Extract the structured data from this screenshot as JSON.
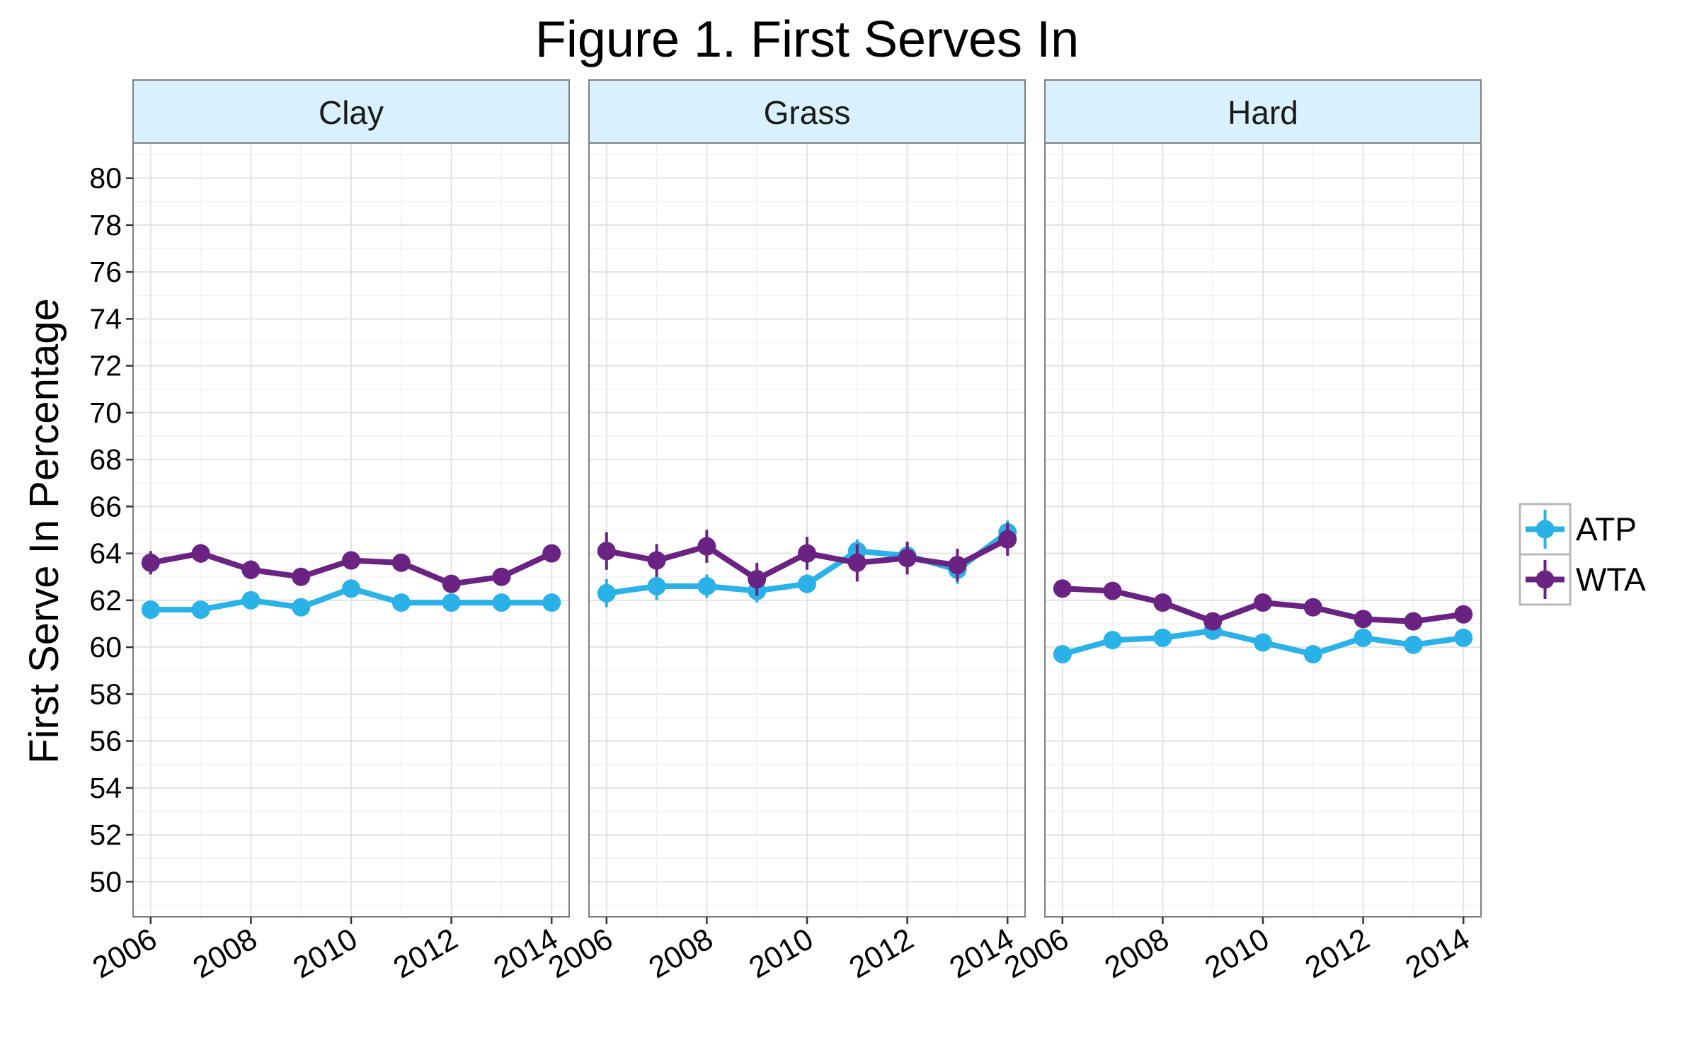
{
  "chart_data": {
    "type": "line",
    "title": "Figure 1. First Serves In",
    "xlabel": "",
    "ylabel": "First Serve In Percentage",
    "ylim": [
      48.5,
      81.5
    ],
    "y_ticks": [
      50,
      52,
      54,
      56,
      58,
      60,
      62,
      64,
      66,
      68,
      70,
      72,
      74,
      76,
      78,
      80
    ],
    "xlim": [
      2005.65,
      2014.35
    ],
    "x_ticks": [
      2006,
      2008,
      2010,
      2012,
      2014
    ],
    "x": [
      2006,
      2007,
      2008,
      2009,
      2010,
      2011,
      2012,
      2013,
      2014
    ],
    "grid": true,
    "legend_position": "right",
    "facets": [
      {
        "label": "Clay",
        "series": [
          {
            "name": "ATP",
            "color": "#29b1e8",
            "values": [
              61.6,
              61.6,
              62.0,
              61.7,
              62.5,
              61.9,
              61.9,
              61.9,
              61.9
            ],
            "errors": [
              0.2,
              0.2,
              0.2,
              0.2,
              0.2,
              0.2,
              0.2,
              0.2,
              0.2
            ]
          },
          {
            "name": "WTA",
            "color": "#6a2283",
            "values": [
              63.6,
              64.0,
              63.3,
              63.0,
              63.7,
              63.6,
              62.7,
              63.0,
              64.0
            ],
            "errors": [
              0.5,
              0.4,
              0.4,
              0.3,
              0.3,
              0.3,
              0.3,
              0.3,
              0.3
            ]
          }
        ]
      },
      {
        "label": "Grass",
        "series": [
          {
            "name": "ATP",
            "color": "#29b1e8",
            "values": [
              62.3,
              62.6,
              62.6,
              62.4,
              62.7,
              64.1,
              63.9,
              63.3,
              64.9
            ],
            "errors": [
              0.6,
              0.6,
              0.5,
              0.5,
              0.4,
              0.5,
              0.5,
              0.6,
              0.5
            ]
          },
          {
            "name": "WTA",
            "color": "#6a2283",
            "values": [
              64.1,
              63.7,
              64.3,
              62.9,
              64.0,
              63.6,
              63.8,
              63.5,
              64.6
            ],
            "errors": [
              0.8,
              0.7,
              0.7,
              0.7,
              0.7,
              0.8,
              0.7,
              0.7,
              0.7
            ]
          }
        ]
      },
      {
        "label": "Hard",
        "series": [
          {
            "name": "ATP",
            "color": "#29b1e8",
            "values": [
              59.7,
              60.3,
              60.4,
              60.7,
              60.2,
              59.7,
              60.4,
              60.1,
              60.4
            ],
            "errors": [
              0.2,
              0.2,
              0.2,
              0.2,
              0.2,
              0.2,
              0.2,
              0.2,
              0.2
            ]
          },
          {
            "name": "WTA",
            "color": "#6a2283",
            "values": [
              62.5,
              62.4,
              61.9,
              61.1,
              61.9,
              61.7,
              61.2,
              61.1,
              61.4
            ],
            "errors": [
              0.2,
              0.2,
              0.2,
              0.2,
              0.2,
              0.2,
              0.2,
              0.2,
              0.2
            ]
          }
        ]
      }
    ],
    "legend": [
      {
        "name": "ATP",
        "color": "#29b1e8"
      },
      {
        "name": "WTA",
        "color": "#6a2283"
      }
    ],
    "strip_color": "#d8f1fc"
  }
}
